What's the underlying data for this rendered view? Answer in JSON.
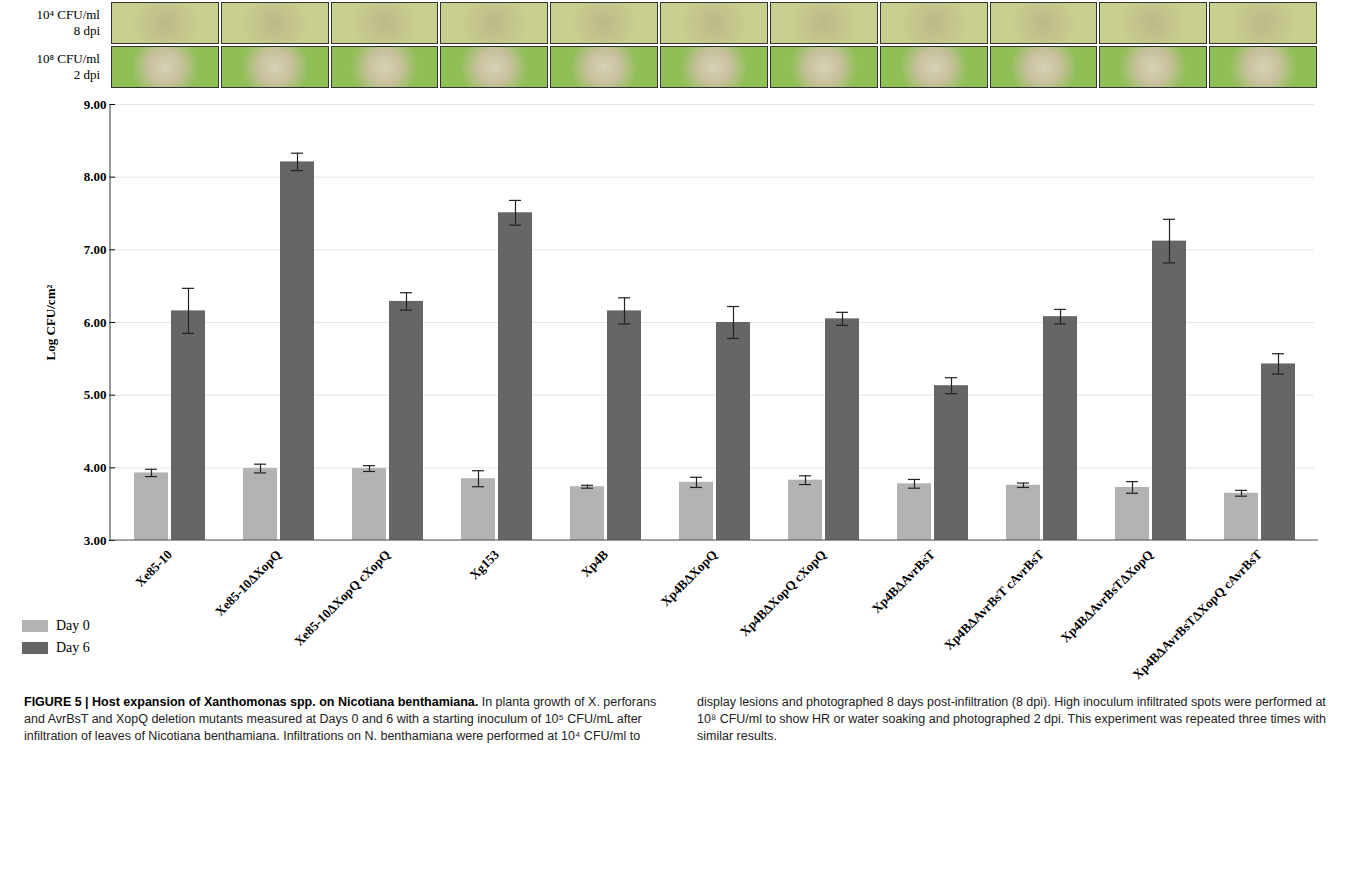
{
  "chart_data": {
    "type": "bar",
    "categories": [
      "Xe85-10",
      "Xe85-10ΔXopQ",
      "Xe85-10ΔXopQ cXopQ",
      "Xg153",
      "Xp4B",
      "Xp4BΔXopQ",
      "Xp4BΔXopQ cXopQ",
      "Xp4BΔAvrBsT",
      "Xp4BΔAvrBsT cAvrBsT",
      "Xp4BΔAvrBsTΔXopQ",
      "Xp4BΔAvrBsTΔXopQ cAvrBsT"
    ],
    "series": [
      {
        "name": "Day 0",
        "color": "#b3b3b3",
        "values": [
          3.93,
          3.99,
          3.99,
          3.85,
          3.74,
          3.8,
          3.83,
          3.78,
          3.76,
          3.73,
          3.65
        ],
        "errors": [
          0.05,
          0.06,
          0.04,
          0.11,
          0.02,
          0.07,
          0.06,
          0.06,
          0.03,
          0.08,
          0.04
        ]
      },
      {
        "name": "Day 6",
        "color": "#666666",
        "values": [
          6.16,
          8.21,
          6.29,
          7.51,
          6.16,
          6.0,
          6.05,
          5.13,
          6.08,
          7.12,
          5.43
        ],
        "errors": [
          0.31,
          0.12,
          0.12,
          0.17,
          0.18,
          0.22,
          0.09,
          0.11,
          0.1,
          0.3,
          0.14
        ]
      }
    ],
    "ylabel": "Log CFU/cm²",
    "ylim": [
      3,
      9
    ],
    "yticks": [
      {
        "value": 3,
        "label": "3.00"
      },
      {
        "value": 4,
        "label": "4.00"
      },
      {
        "value": 5,
        "label": "5.00"
      },
      {
        "value": 6,
        "label": "6.00"
      },
      {
        "value": 7,
        "label": "7.00"
      },
      {
        "value": 8,
        "label": "8.00"
      },
      {
        "value": 9,
        "label": "9.00"
      }
    ],
    "grid": true,
    "legend": "bottom-left",
    "image_row_labels": [
      [
        "10⁴ CFU/ml",
        "8 dpi"
      ],
      [
        "10⁸ CFU/ml",
        "2 dpi"
      ]
    ],
    "caption": {
      "head": "FIGURE 5 |",
      "title": "Host expansion of Xanthomonas spp. on Nicotiana benthamiana.",
      "text": "In planta growth of X. perforans and AvrBsT and XopQ deletion mutants measured at Days 0 and 6 with a starting inoculum of 10⁵ CFU/mL after infiltration of leaves of Nicotiana benthamiana. Infiltrations on N. benthamiana were performed at 10⁴ CFU/ml to display lesions and photographed 8 days post-infiltration (8 dpi). High inoculum infiltrated spots were performed at 10⁸ CFU/ml to show HR or water soaking and photographed 2 dpi. This experiment was repeated three times with similar results."
    }
  }
}
